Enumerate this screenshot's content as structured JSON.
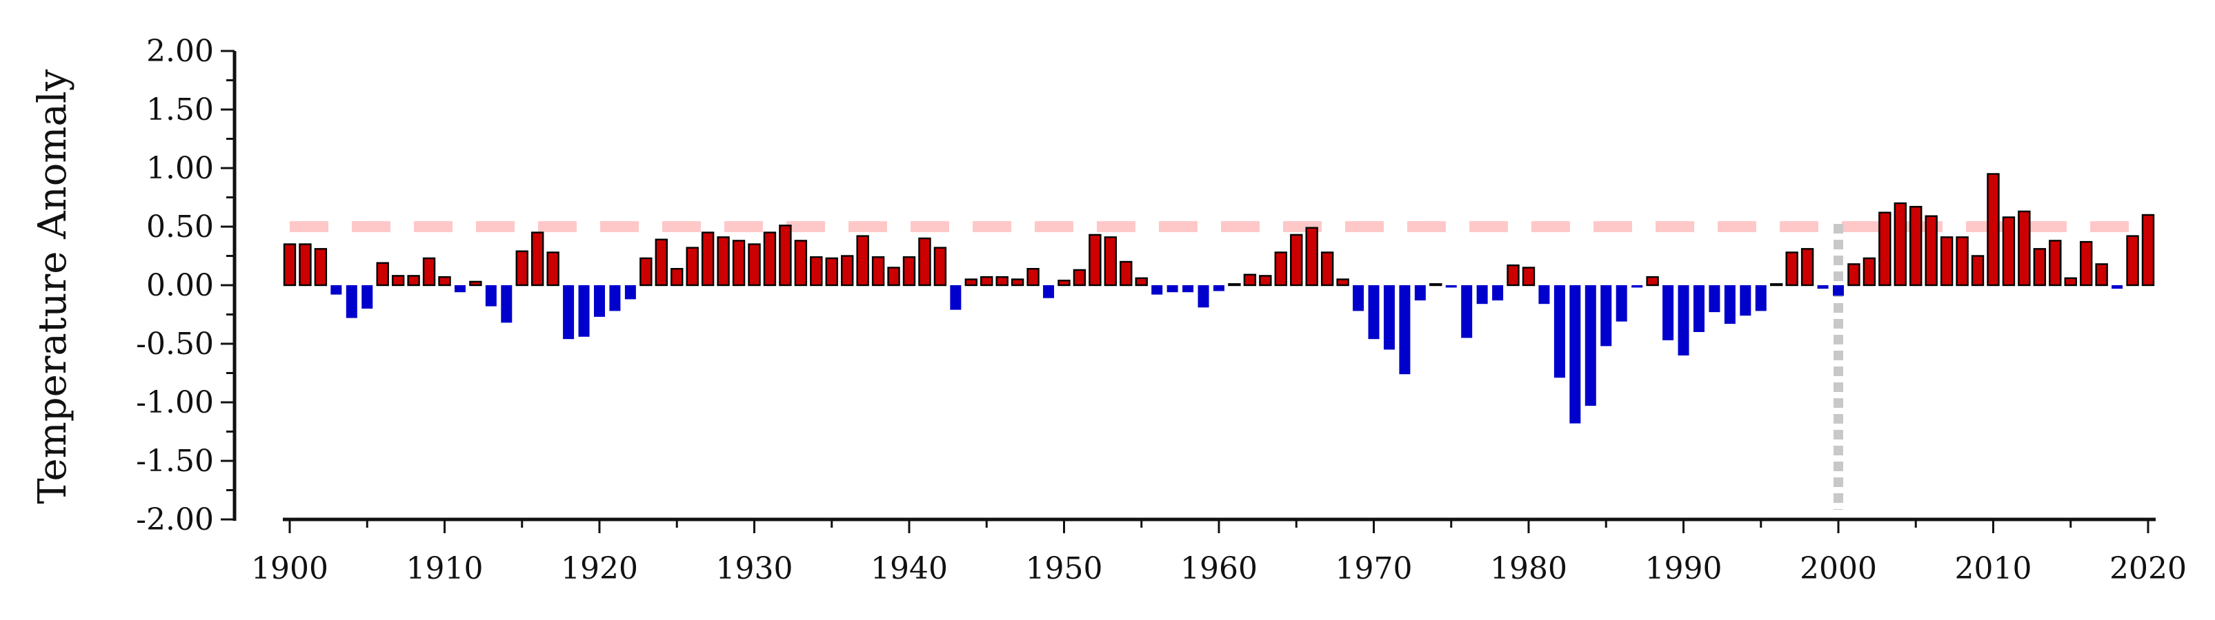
{
  "chart_data": {
    "type": "bar",
    "title": "",
    "xlabel": "",
    "ylabel": "Temperature Anomaly",
    "xlim": [
      1899.5,
      2020.5
    ],
    "ylim": [
      -2,
      2
    ],
    "y_ticks": [
      "2.00",
      "1.50",
      "1.00",
      "0.50",
      "0.00",
      "-0.50",
      "-1.00",
      "-1.50",
      "-2.00"
    ],
    "x_ticks": [
      "1900",
      "1910",
      "1920",
      "1930",
      "1940",
      "1950",
      "1960",
      "1970",
      "1980",
      "1990",
      "2000",
      "2010",
      "2020"
    ],
    "positive_color": "#cc0000",
    "negative_color": "#0000cc",
    "threshold_line": {
      "value": 0.5,
      "color": "#ffc8c8",
      "style": "dashed"
    },
    "vertical_marker": {
      "x": 2000,
      "color": "#c8c8c8",
      "style": "dotted"
    },
    "grid": false,
    "x": [
      1900,
      1901,
      1902,
      1903,
      1904,
      1905,
      1906,
      1907,
      1908,
      1909,
      1910,
      1911,
      1912,
      1913,
      1914,
      1915,
      1916,
      1917,
      1918,
      1919,
      1920,
      1921,
      1922,
      1923,
      1924,
      1925,
      1926,
      1927,
      1928,
      1929,
      1930,
      1931,
      1932,
      1933,
      1934,
      1935,
      1936,
      1937,
      1938,
      1939,
      1940,
      1941,
      1942,
      1943,
      1944,
      1945,
      1946,
      1947,
      1948,
      1949,
      1950,
      1951,
      1952,
      1953,
      1954,
      1955,
      1956,
      1957,
      1958,
      1959,
      1960,
      1961,
      1962,
      1963,
      1964,
      1965,
      1966,
      1967,
      1968,
      1969,
      1970,
      1971,
      1972,
      1973,
      1974,
      1975,
      1976,
      1977,
      1978,
      1979,
      1980,
      1981,
      1982,
      1983,
      1984,
      1985,
      1986,
      1987,
      1988,
      1989,
      1990,
      1991,
      1992,
      1993,
      1994,
      1995,
      1996,
      1997,
      1998,
      1999,
      2000,
      2001,
      2002,
      2003,
      2004,
      2005,
      2006,
      2007,
      2008,
      2009,
      2010,
      2011,
      2012,
      2013,
      2014,
      2015,
      2016,
      2017,
      2018,
      2019,
      2020
    ],
    "values": [
      0.35,
      0.35,
      0.31,
      -0.08,
      -0.28,
      -0.2,
      0.19,
      0.08,
      0.08,
      0.23,
      0.07,
      -0.06,
      0.03,
      -0.18,
      -0.32,
      0.29,
      0.45,
      0.28,
      -0.46,
      -0.44,
      -0.27,
      -0.22,
      -0.12,
      0.23,
      0.39,
      0.14,
      0.32,
      0.45,
      0.41,
      0.38,
      0.35,
      0.45,
      0.51,
      0.38,
      0.24,
      0.23,
      0.25,
      0.42,
      0.24,
      0.15,
      0.24,
      0.4,
      0.32,
      -0.21,
      0.05,
      0.07,
      0.07,
      0.05,
      0.14,
      -0.11,
      0.04,
      0.13,
      0.43,
      0.41,
      0.2,
      0.06,
      -0.08,
      -0.06,
      -0.06,
      -0.19,
      -0.05,
      0.01,
      0.09,
      0.08,
      0.28,
      0.43,
      0.49,
      0.28,
      0.05,
      -0.22,
      -0.46,
      -0.55,
      -0.76,
      -0.13,
      0.01,
      -0.02,
      -0.45,
      -0.16,
      -0.13,
      0.17,
      0.15,
      -0.16,
      -0.79,
      -1.18,
      -1.03,
      -0.52,
      -0.31,
      -0.02,
      0.07,
      -0.47,
      -0.6,
      -0.4,
      -0.23,
      -0.33,
      -0.26,
      -0.22,
      0.01,
      0.28,
      0.31,
      -0.03,
      -0.09,
      0.18,
      0.23,
      0.62,
      0.7,
      0.67,
      0.59,
      0.41,
      0.41,
      0.25,
      0.95,
      0.58,
      0.63,
      0.31,
      0.38,
      0.06,
      0.37,
      0.18,
      -0.03,
      0.42,
      0.6
    ]
  }
}
